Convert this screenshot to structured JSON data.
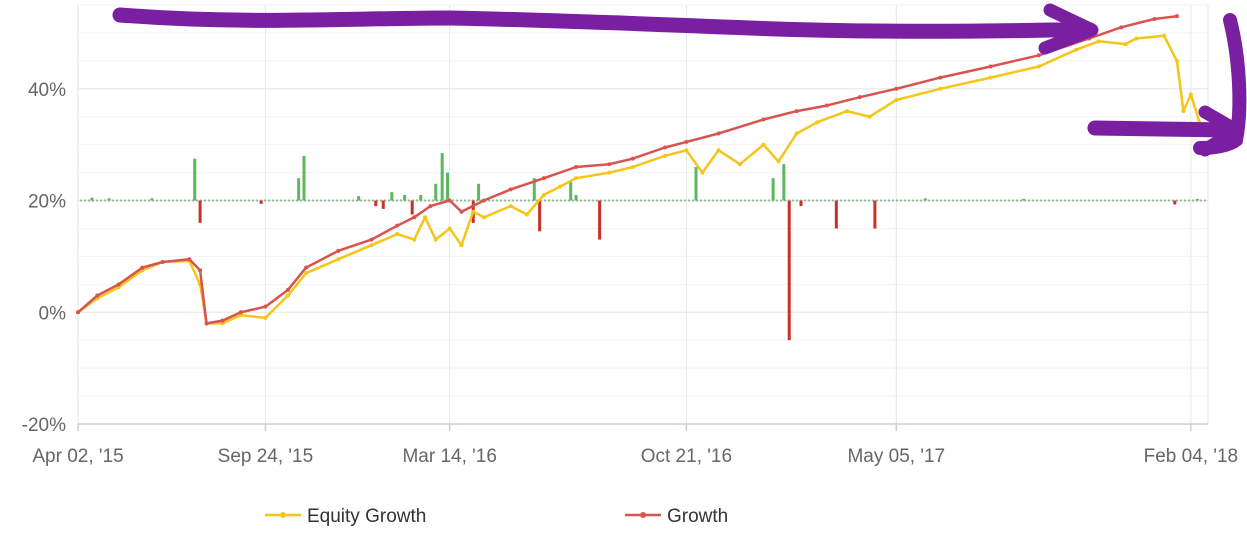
{
  "chart_data": {
    "type": "line",
    "title": "",
    "xlabel": "",
    "ylabel": "",
    "ylim": [
      -20,
      55
    ],
    "y_ticks": [
      {
        "value": -20,
        "label": "-20%"
      },
      {
        "value": 0,
        "label": "0%"
      },
      {
        "value": 20,
        "label": "20%"
      },
      {
        "value": 40,
        "label": "40%"
      }
    ],
    "x_range": [
      "2015-04-02",
      "2018-02-20"
    ],
    "x_ticks": [
      {
        "date": "2015-04-02",
        "label": "Apr 02, '15"
      },
      {
        "date": "2015-09-24",
        "label": "Sep 24, '15"
      },
      {
        "date": "2016-03-14",
        "label": "Mar 14, '16"
      },
      {
        "date": "2016-10-21",
        "label": "Oct 21, '16"
      },
      {
        "date": "2017-05-05",
        "label": "May 05, '17"
      },
      {
        "date": "2018-02-04",
        "label": "Feb 04, '18"
      }
    ],
    "grid": true,
    "legend_position": "bottom",
    "series": [
      {
        "name": "Equity Growth",
        "color": "#f5c518",
        "points": [
          [
            "2015-04-02",
            0.0
          ],
          [
            "2015-04-20",
            2.5
          ],
          [
            "2015-05-10",
            4.5
          ],
          [
            "2015-06-01",
            7.5
          ],
          [
            "2015-06-20",
            9.0
          ],
          [
            "2015-07-15",
            9.2
          ],
          [
            "2015-07-25",
            5.0
          ],
          [
            "2015-07-31",
            -2.0
          ],
          [
            "2015-08-15",
            -2.0
          ],
          [
            "2015-09-01",
            -0.5
          ],
          [
            "2015-09-24",
            -1.0
          ],
          [
            "2015-10-15",
            3.0
          ],
          [
            "2015-11-01",
            7.0
          ],
          [
            "2015-12-01",
            9.5
          ],
          [
            "2016-01-01",
            12.0
          ],
          [
            "2016-01-25",
            14.0
          ],
          [
            "2016-02-10",
            13.0
          ],
          [
            "2016-02-20",
            17.0
          ],
          [
            "2016-03-01",
            13.0
          ],
          [
            "2016-03-14",
            15.0
          ],
          [
            "2016-03-25",
            12.0
          ],
          [
            "2016-04-05",
            18.0
          ],
          [
            "2016-04-15",
            17.0
          ],
          [
            "2016-05-10",
            19.0
          ],
          [
            "2016-05-25",
            17.5
          ],
          [
            "2016-06-10",
            21.0
          ],
          [
            "2016-06-25",
            22.5
          ],
          [
            "2016-07-10",
            24.0
          ],
          [
            "2016-08-10",
            25.0
          ],
          [
            "2016-09-01",
            26.0
          ],
          [
            "2016-10-01",
            28.0
          ],
          [
            "2016-10-21",
            29.0
          ],
          [
            "2016-11-05",
            25.0
          ],
          [
            "2016-11-20",
            29.0
          ],
          [
            "2016-12-10",
            26.5
          ],
          [
            "2017-01-01",
            30.0
          ],
          [
            "2017-01-15",
            27.0
          ],
          [
            "2017-02-01",
            32.0
          ],
          [
            "2017-02-20",
            34.0
          ],
          [
            "2017-03-20",
            36.0
          ],
          [
            "2017-04-10",
            35.0
          ],
          [
            "2017-05-05",
            38.0
          ],
          [
            "2017-06-15",
            40.0
          ],
          [
            "2017-08-01",
            42.0
          ],
          [
            "2017-09-15",
            44.0
          ],
          [
            "2017-10-20",
            47.0
          ],
          [
            "2017-11-10",
            48.5
          ],
          [
            "2017-12-05",
            48.0
          ],
          [
            "2017-12-15",
            49.0
          ],
          [
            "2018-01-10",
            49.5
          ],
          [
            "2018-01-22",
            45.0
          ],
          [
            "2018-01-28",
            36.0
          ],
          [
            "2018-02-04",
            39.0
          ],
          [
            "2018-02-12",
            34.0
          ]
        ]
      },
      {
        "name": "Growth",
        "color": "#d9534f",
        "points": [
          [
            "2015-04-02",
            0.0
          ],
          [
            "2015-04-20",
            3.0
          ],
          [
            "2015-05-10",
            5.0
          ],
          [
            "2015-06-01",
            8.0
          ],
          [
            "2015-06-20",
            9.0
          ],
          [
            "2015-07-15",
            9.5
          ],
          [
            "2015-07-25",
            7.5
          ],
          [
            "2015-07-31",
            -2.0
          ],
          [
            "2015-08-15",
            -1.5
          ],
          [
            "2015-09-01",
            0.0
          ],
          [
            "2015-09-24",
            1.0
          ],
          [
            "2015-10-15",
            4.0
          ],
          [
            "2015-11-01",
            8.0
          ],
          [
            "2015-12-01",
            11.0
          ],
          [
            "2016-01-01",
            13.0
          ],
          [
            "2016-01-25",
            15.5
          ],
          [
            "2016-02-10",
            17.0
          ],
          [
            "2016-02-25",
            19.0
          ],
          [
            "2016-03-14",
            20.0
          ],
          [
            "2016-03-25",
            18.0
          ],
          [
            "2016-04-15",
            20.0
          ],
          [
            "2016-05-10",
            22.0
          ],
          [
            "2016-06-10",
            24.0
          ],
          [
            "2016-07-10",
            26.0
          ],
          [
            "2016-08-10",
            26.5
          ],
          [
            "2016-09-01",
            27.5
          ],
          [
            "2016-10-01",
            29.5
          ],
          [
            "2016-10-21",
            30.5
          ],
          [
            "2016-11-20",
            32.0
          ],
          [
            "2017-01-01",
            34.5
          ],
          [
            "2017-02-01",
            36.0
          ],
          [
            "2017-03-01",
            37.0
          ],
          [
            "2017-04-01",
            38.5
          ],
          [
            "2017-05-05",
            40.0
          ],
          [
            "2017-06-15",
            42.0
          ],
          [
            "2017-08-01",
            44.0
          ],
          [
            "2017-09-15",
            46.0
          ],
          [
            "2017-11-01",
            49.0
          ],
          [
            "2017-12-01",
            51.0
          ],
          [
            "2018-01-01",
            52.5
          ],
          [
            "2018-01-22",
            53.0
          ]
        ]
      }
    ],
    "bars": {
      "baseline": 20,
      "up_color": "#5cb85c",
      "down_color": "#c9302c",
      "values": [
        [
          "2015-04-15",
          0.5
        ],
        [
          "2015-05-01",
          0.4
        ],
        [
          "2015-06-10",
          0.4
        ],
        [
          "2015-07-20",
          7.5
        ],
        [
          "2015-07-25",
          -4.0
        ],
        [
          "2015-09-20",
          -0.6
        ],
        [
          "2015-10-25",
          4.0
        ],
        [
          "2015-10-30",
          8.0
        ],
        [
          "2015-12-20",
          0.8
        ],
        [
          "2016-01-05",
          -1.0
        ],
        [
          "2016-01-12",
          -1.5
        ],
        [
          "2016-01-20",
          1.5
        ],
        [
          "2016-02-01",
          1.0
        ],
        [
          "2016-02-08",
          -2.5
        ],
        [
          "2016-02-16",
          1.0
        ],
        [
          "2016-03-01",
          3.0
        ],
        [
          "2016-03-07",
          8.5
        ],
        [
          "2016-03-12",
          5.0
        ],
        [
          "2016-04-05",
          -4.0
        ],
        [
          "2016-04-10",
          3.0
        ],
        [
          "2016-06-01",
          4.0
        ],
        [
          "2016-06-06",
          -5.5
        ],
        [
          "2016-07-05",
          3.5
        ],
        [
          "2016-07-10",
          1.0
        ],
        [
          "2016-08-01",
          -7.0
        ],
        [
          "2016-10-30",
          6.0
        ],
        [
          "2017-01-10",
          4.0
        ],
        [
          "2017-01-20",
          6.5
        ],
        [
          "2017-01-25",
          -25.0
        ],
        [
          "2017-02-05",
          -1.0
        ],
        [
          "2017-03-10",
          -5.0
        ],
        [
          "2017-04-15",
          -5.0
        ],
        [
          "2017-06-01",
          0.4
        ],
        [
          "2017-09-01",
          0.3
        ],
        [
          "2018-01-20",
          -0.7
        ],
        [
          "2018-02-10",
          0.3
        ]
      ]
    }
  }
}
